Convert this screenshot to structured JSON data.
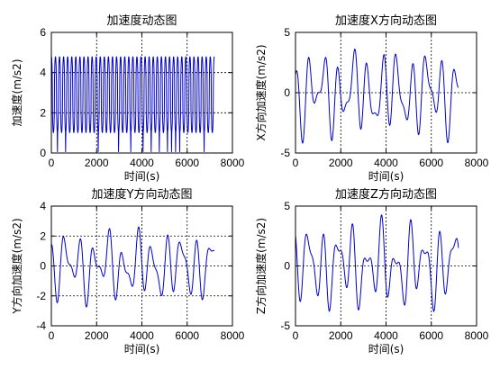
{
  "chart_data": [
    {
      "type": "line",
      "title": "加速度动态图",
      "xlabel": "时间(s)",
      "ylabel": "加速度(m/s2)",
      "xlim": [
        0,
        8000
      ],
      "ylim": [
        0,
        6
      ],
      "xticks": [
        "0",
        "2000",
        "4000",
        "6000",
        "8000"
      ],
      "yticks": [
        "0",
        "2",
        "4",
        "6"
      ],
      "grid": "dotted",
      "series": [
        {
          "color": "#0000cc",
          "x_end": 7200,
          "mean": 2.9,
          "amplitude": 1.9,
          "cycles": 40
        }
      ]
    },
    {
      "type": "line",
      "title": "加速度X方向动态图",
      "xlabel": "时间(s)",
      "ylabel": "X方向加速度(m/s2)",
      "xlim": [
        0,
        8000
      ],
      "ylim": [
        -5,
        5
      ],
      "xticks": [
        "0",
        "2000",
        "4000",
        "6000",
        "8000"
      ],
      "yticks": [
        "-5",
        "0",
        "5"
      ],
      "grid": "dotted",
      "series": [
        {
          "color": "#0000cc",
          "x_end": 7200,
          "amplitude": 4.0
        }
      ]
    },
    {
      "type": "line",
      "title": "加速度Y方向动态图",
      "xlabel": "时间(s)",
      "ylabel": "Y方向加速度(m/s2)",
      "xlim": [
        0,
        8000
      ],
      "ylim": [
        -4,
        4
      ],
      "xticks": [
        "0",
        "2000",
        "4000",
        "6000",
        "8000"
      ],
      "yticks": [
        "-4",
        "-2",
        "0",
        "2",
        "4"
      ],
      "grid": "dotted",
      "series": [
        {
          "color": "#0000cc",
          "x_end": 7200,
          "amplitude": 2.6
        }
      ]
    },
    {
      "type": "line",
      "title": "加速度Z方向动态图",
      "xlabel": "时间(s)",
      "ylabel": "Z方向加速度(m/s2)",
      "xlim": [
        0,
        8000
      ],
      "ylim": [
        -5,
        5
      ],
      "xticks": [
        "0",
        "2000",
        "4000",
        "6000",
        "8000"
      ],
      "yticks": [
        "-5",
        "0",
        "5"
      ],
      "grid": "dotted",
      "series": [
        {
          "color": "#0000cc",
          "x_end": 7200,
          "amplitude": 4.0
        }
      ]
    }
  ]
}
